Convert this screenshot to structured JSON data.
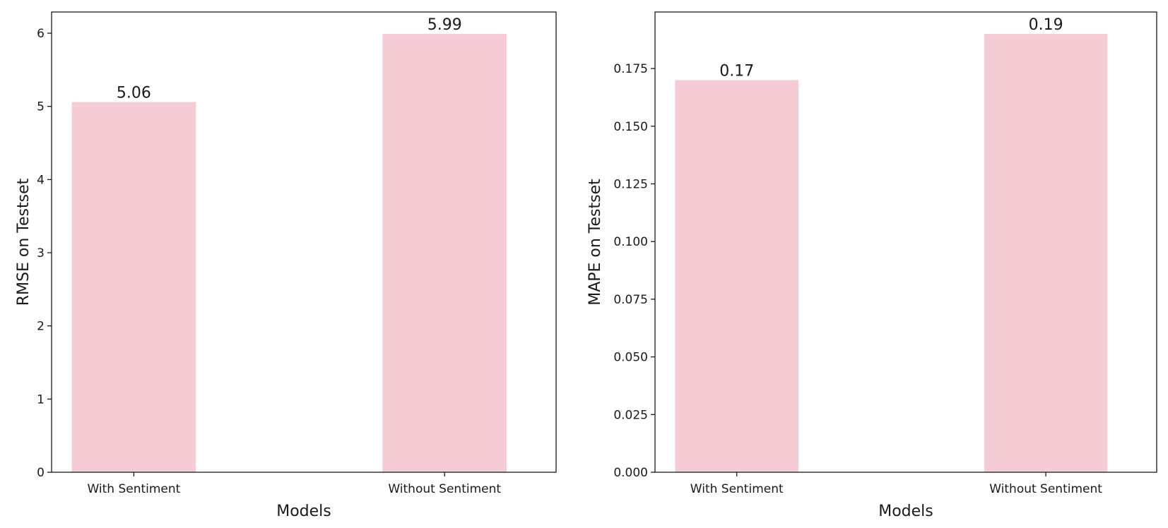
{
  "chart_data": [
    {
      "type": "bar",
      "categories": [
        "With Sentiment",
        "Without Sentiment"
      ],
      "values": [
        5.06,
        5.99
      ],
      "data_labels": [
        "5.06",
        "5.99"
      ],
      "title": "",
      "xlabel": "Models",
      "ylabel": "RMSE on Testset",
      "ylim": [
        0,
        6.29
      ],
      "yticks": [
        0,
        1,
        2,
        3,
        4,
        5,
        6
      ],
      "ytick_labels": [
        "0",
        "1",
        "2",
        "3",
        "4",
        "5",
        "6"
      ],
      "grid": false,
      "bar_color": "#f5ccd4"
    },
    {
      "type": "bar",
      "categories": [
        "With Sentiment",
        "Without Sentiment"
      ],
      "values": [
        0.17,
        0.19
      ],
      "data_labels": [
        "0.17",
        "0.19"
      ],
      "title": "",
      "xlabel": "Models",
      "ylabel": "MAPE on Testset",
      "ylim": [
        0,
        0.1995
      ],
      "yticks": [
        0,
        0.025,
        0.05,
        0.075,
        0.1,
        0.125,
        0.15,
        0.175
      ],
      "ytick_labels": [
        "0.000",
        "0.025",
        "0.050",
        "0.075",
        "0.100",
        "0.125",
        "0.150",
        "0.175"
      ],
      "grid": false,
      "bar_color": "#f5ccd4"
    }
  ]
}
